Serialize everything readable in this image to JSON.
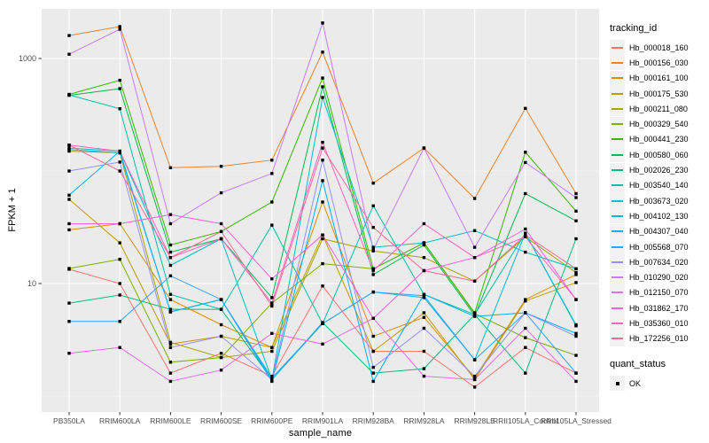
{
  "chart_data": {
    "type": "line",
    "title": "",
    "xlabel": "sample_name",
    "ylabel": "FPKM + 1",
    "y_scale": "log10",
    "y_tick_labels": [
      "1000",
      "10"
    ],
    "y_major_breaks": [
      1000,
      10
    ],
    "y_minor_breaks": [
      100,
      1
    ],
    "ylim": [
      0.72,
      2800
    ],
    "grid": "on",
    "legend_position": "right",
    "categories": [
      "PB350LA",
      "RRIM600LA",
      "RRIM600LE",
      "RRIM600SE",
      "RRIM600PE",
      "RRIM901LA",
      "RRIM928BA",
      "RRIM928LA",
      "RRIM928LE",
      "RRII105LA_Control",
      "RRII105LA_Stressed"
    ],
    "series": [
      {
        "id": "Hb_000018_160",
        "color": "#F8766D",
        "values": [
          13.4,
          10,
          1.6,
          2.4,
          1.5,
          9.5,
          2.5,
          2.5,
          1.2,
          2.7,
          1.6
        ]
      },
      {
        "id": "Hb_000156_030",
        "color": "#EA8331",
        "values": [
          1600,
          1920,
          107,
          110,
          125,
          1140,
          78,
          160,
          57,
          360,
          63
        ]
      },
      {
        "id": "Hb_000161_100",
        "color": "#D89000",
        "values": [
          30,
          34,
          7.2,
          4.3,
          2.7,
          53,
          3.4,
          5.0,
          1.45,
          7.2,
          12
        ]
      },
      {
        "id": "Hb_000175_530",
        "color": "#C09B00",
        "values": [
          56,
          23,
          2.9,
          3.4,
          2.7,
          27,
          2.5,
          5.5,
          1.4,
          7.0,
          10.2
        ]
      },
      {
        "id": "Hb_000211_080",
        "color": "#A3A500",
        "values": [
          150,
          145,
          3.0,
          2.2,
          2.5,
          25,
          19.5,
          17,
          10.5,
          26,
          12.5
        ]
      },
      {
        "id": "Hb_000329_540",
        "color": "#7CAE00",
        "values": [
          13.6,
          16.4,
          2.0,
          2.2,
          6.7,
          15,
          13.5,
          23,
          5.4,
          3.3,
          2.3
        ]
      },
      {
        "id": "Hb_000441_230",
        "color": "#39B600",
        "values": [
          480,
          640,
          22,
          29,
          53,
          670,
          13.5,
          23,
          5.5,
          147,
          44
        ]
      },
      {
        "id": "Hb_000580_060",
        "color": "#00BB4E",
        "values": [
          470,
          540,
          19,
          25,
          7.5,
          560,
          12,
          22,
          5.2,
          63,
          36
        ]
      },
      {
        "id": "Hb_002026_230",
        "color": "#00BF7D",
        "values": [
          6.7,
          7.9,
          5.9,
          5.9,
          1.4,
          4.5,
          1.6,
          1.75,
          5.3,
          1.6,
          25
        ]
      },
      {
        "id": "Hb_003540_140",
        "color": "#00C1A3",
        "values": [
          475,
          358,
          8.0,
          5.9,
          33,
          4.4,
          49,
          8.0,
          5.3,
          28,
          4.3
        ]
      },
      {
        "id": "Hb_003673_020",
        "color": "#00BFC4",
        "values": [
          160,
          150,
          14.5,
          25,
          1.4,
          450,
          21,
          23,
          29.5,
          19,
          13.5
        ]
      },
      {
        "id": "Hb_004102_130",
        "color": "#00BAE0",
        "values": [
          155,
          145,
          5.6,
          7.2,
          1.4,
          4.4,
          8.4,
          7.5,
          2.1,
          28,
          4.2
        ]
      },
      {
        "id": "Hb_004307_040",
        "color": "#00B0F6",
        "values": [
          61,
          150,
          5.6,
          7.2,
          1.35,
          82,
          1.35,
          8.0,
          5.1,
          5.5,
          3.6
        ]
      },
      {
        "id": "Hb_005568_070",
        "color": "#35A2FF",
        "values": [
          4.6,
          4.6,
          11.7,
          7.2,
          1.45,
          4.4,
          8.4,
          7.8,
          2.1,
          5.5,
          1.6
        ]
      },
      {
        "id": "Hb_007634_020",
        "color": "#9590FF",
        "values": [
          100,
          120,
          2.7,
          3.4,
          1.4,
          125,
          1.8,
          4.0,
          1.5,
          5.5,
          3.4
        ]
      },
      {
        "id": "Hb_010290_020",
        "color": "#C77CFF",
        "values": [
          1090,
          1820,
          34,
          64,
          95,
          2070,
          20,
          160,
          21,
          119,
          58
        ]
      },
      {
        "id": "Hb_012150_070",
        "color": "#E76BF3",
        "values": [
          2.4,
          2.7,
          1.35,
          1.7,
          3.6,
          2.9,
          4.9,
          1.5,
          1.4,
          4.0,
          1.35
        ]
      },
      {
        "id": "Hb_031862_170",
        "color": "#FA62DB",
        "values": [
          34,
          34,
          41,
          34,
          11,
          27,
          4.9,
          13,
          17,
          30.5,
          7.2
        ]
      },
      {
        "id": "Hb_035360_010",
        "color": "#FF62BC",
        "values": [
          170,
          150,
          17,
          25,
          6.7,
          180,
          13,
          34,
          17,
          26,
          7.2
        ]
      },
      {
        "id": "Hb_172256_010",
        "color": "#FF6A98",
        "values": [
          170,
          100,
          17,
          29,
          6.3,
          160,
          31.5,
          13,
          10.5,
          27,
          13.5
        ]
      }
    ],
    "legend": {
      "tracking_title": "tracking_id",
      "quant_title": "quant_status",
      "quant_items": [
        {
          "label": "OK",
          "shape": "black-square-point"
        }
      ]
    },
    "colors": {
      "panel_background": "#EBEBEB",
      "grid_major": "#FFFFFF",
      "grid_minor": "#F7F7F7",
      "tick_text": "#4D4D4D",
      "point": "#000000",
      "legend_key_background": "#F2F2F2"
    }
  }
}
